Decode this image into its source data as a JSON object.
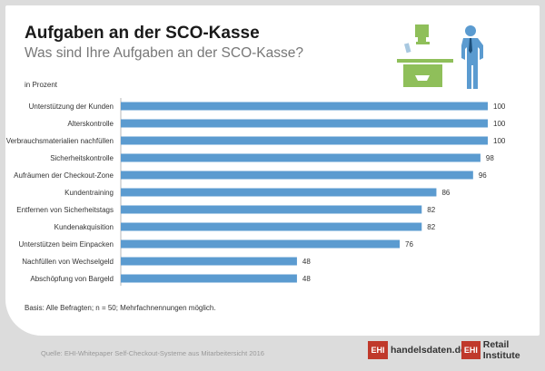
{
  "header": {
    "title": "Aufgaben an der SCO-Kasse",
    "subtitle": "Was sind Ihre Aufgaben an der SCO-Kasse?",
    "unit": "in Prozent"
  },
  "footer": {
    "note": "Basis: Alle Befragten; n = 50; Mehrfachnennungen möglich.",
    "source": "Quelle: EHI-Whitepaper Self-Checkout-Systeme aus Mitarbeitersicht 2016",
    "logo1_box": "EHI",
    "logo1_text": "handelsdaten.de",
    "logo2_box": "EHI",
    "logo2_text": "Retail Institute"
  },
  "colors": {
    "bar": "#5b9bd0",
    "illustration_green": "#8fbf5a",
    "illustration_blue": "#5b9bd0"
  },
  "chart_data": {
    "type": "bar",
    "orientation": "horizontal",
    "xlim": [
      0,
      100
    ],
    "grid": false,
    "categories": [
      "Unterstützung der Kunden",
      "Alterskontrolle",
      "Verbrauchsmaterialien nachfüllen",
      "Sicherheitskontrolle",
      "Aufräumen der Checkout-Zone",
      "Kundentraining",
      "Entfernen von Sicherheitstags",
      "Kundenakquisition",
      "Unterstützen beim Einpacken",
      "Nachfüllen von Wechselgeld",
      "Abschöpfung von Bargeld"
    ],
    "values": [
      100,
      100,
      100,
      98,
      96,
      86,
      82,
      82,
      76,
      48,
      48
    ]
  }
}
